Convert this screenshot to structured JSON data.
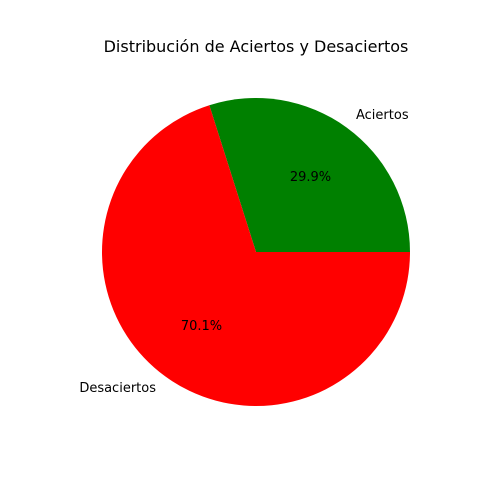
{
  "chart_data": {
    "type": "pie",
    "title": "Distribución de Aciertos y Desaciertos",
    "slices": [
      {
        "label": "Aciertos",
        "percent": 29.9,
        "pct_label": "29.9%",
        "color": "#008000"
      },
      {
        "label": "Desaciertos",
        "percent": 70.1,
        "pct_label": "70.1%",
        "color": "#ff0000"
      }
    ],
    "start_angle_deg": 0,
    "direction": "counterclockwise",
    "legend": "none"
  }
}
